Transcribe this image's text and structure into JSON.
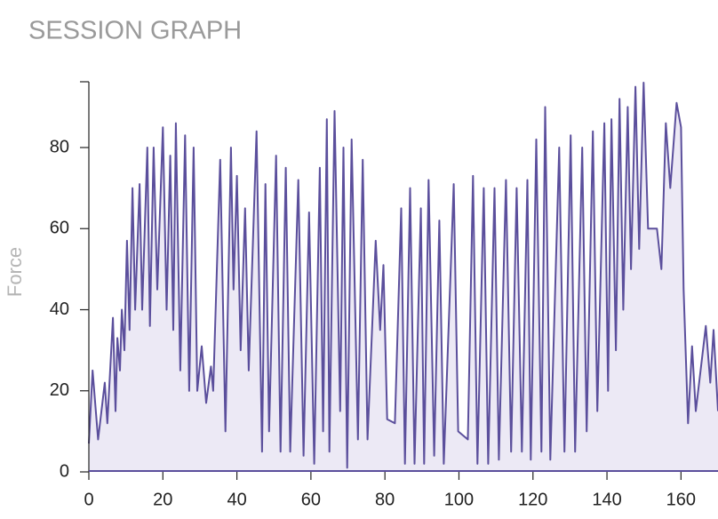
{
  "chart_data": {
    "type": "line",
    "title": "SESSION GRAPH",
    "y_label": "Force",
    "color": "#5b4f9c",
    "area_color": "#ece9f5",
    "xlim": [
      0,
      170
    ],
    "xticks": [
      0,
      20,
      40,
      60,
      80,
      100,
      120,
      140,
      160
    ],
    "ylim": [
      0,
      96
    ],
    "yticks": [
      0,
      20,
      40,
      60,
      80
    ],
    "x": [
      0,
      1,
      2.5,
      4.3,
      5,
      6.5,
      7.2,
      7.7,
      8.4,
      8.9,
      9.6,
      10.3,
      11,
      11.8,
      12.5,
      13.7,
      14.4,
      15.8,
      16.5,
      17.5,
      18.5,
      20,
      21,
      22,
      22.8,
      23.5,
      24.7,
      26,
      27.1,
      28.3,
      29.3,
      30.5,
      31.7,
      33,
      33.6,
      35.5,
      36.9,
      38.4,
      39.1,
      40,
      41,
      42.2,
      43.2,
      45.3,
      46.8,
      47.7,
      48.7,
      50.6,
      51.8,
      53.2,
      54.4,
      56.6,
      58,
      59.5,
      60.9,
      62.4,
      63.3,
      64.3,
      65,
      66.4,
      67.9,
      68.8,
      69.8,
      71,
      72.7,
      74,
      75.3,
      77.5,
      78.7,
      79.6,
      80.6,
      82.7,
      84.4,
      85.4,
      86.8,
      88,
      89.7,
      90.6,
      91.8,
      93.3,
      94.7,
      95.9,
      98.6,
      99.8,
      102.4,
      103.8,
      105,
      106.7,
      107.9,
      109.6,
      110.8,
      112.7,
      114.1,
      115.6,
      117,
      118.5,
      119.4,
      120.9,
      122.3,
      123.3,
      124.7,
      127.1,
      128.5,
      130.2,
      131.4,
      133.3,
      134.5,
      136.2,
      137.4,
      139.3,
      140.3,
      141.2,
      142.4,
      143.4,
      144.4,
      145.6,
      146.5,
      147.7,
      148.7,
      149.9,
      151.1,
      153.5,
      154.7,
      155.9,
      157.1,
      158.8,
      160,
      160.7,
      161.9,
      163,
      164,
      166.7,
      167.9,
      168.8,
      170
    ],
    "values": [
      7,
      25,
      8,
      22,
      12,
      38,
      15,
      33,
      25,
      40,
      30,
      57,
      35,
      70,
      40,
      71,
      40,
      80,
      36,
      80,
      45,
      85,
      40,
      78,
      35,
      86,
      25,
      83,
      20,
      80,
      20,
      31,
      17,
      26,
      20,
      77,
      10,
      80,
      45,
      73,
      30,
      65,
      25,
      84,
      5,
      71,
      10,
      78,
      5,
      75,
      5,
      72,
      4,
      64,
      2,
      75,
      10,
      87,
      5,
      89,
      15,
      80,
      1,
      82,
      8,
      77,
      8,
      57,
      35,
      51,
      13,
      12,
      65,
      2,
      70,
      2,
      65,
      2,
      72,
      4,
      62,
      2,
      71,
      10,
      8,
      73,
      2,
      70,
      2,
      70,
      3,
      72,
      5,
      70,
      5,
      72,
      3,
      82,
      5,
      90,
      3,
      80,
      5,
      83,
      5,
      80,
      10,
      84,
      15,
      86,
      20,
      87,
      30,
      92,
      40,
      90,
      50,
      95,
      55,
      96,
      60,
      60,
      50,
      86,
      70,
      91,
      85,
      45,
      12,
      31,
      15,
      36,
      22,
      35,
      15
    ]
  }
}
